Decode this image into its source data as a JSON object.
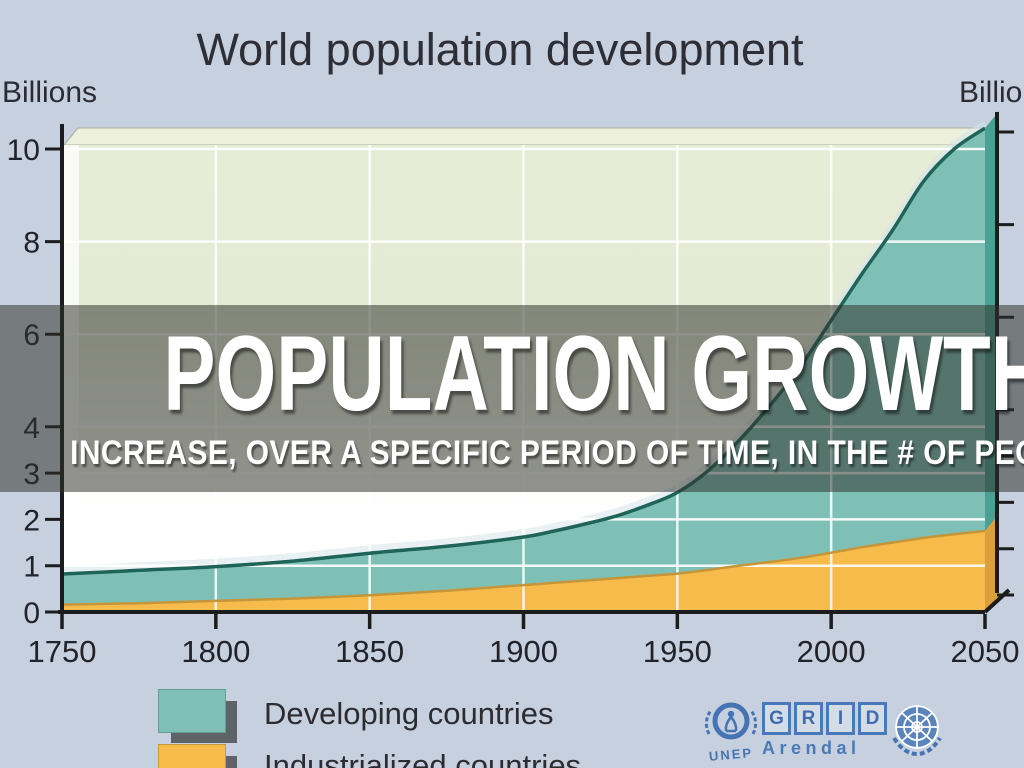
{
  "slide": {
    "title": "POPULATION GROWTH",
    "subtitle": "INCREASE, OVER A SPECIFIC PERIOD OF TIME, IN THE # OF PEOPLE",
    "overlay_bg": "rgba(47,49,42,0.53)"
  },
  "chart": {
    "title": "World population development",
    "y_axis_label_left": "Billions",
    "y_axis_label_right": "Billio",
    "legend": [
      {
        "label": "Developing countries"
      },
      {
        "label": "Industrialized countries"
      }
    ],
    "credits": {
      "unep_label": "UNEP",
      "grid_letters": [
        "G",
        "R",
        "I",
        "D"
      ],
      "grid_sub": "Arendal",
      "logo_color": "#4673b2"
    }
  },
  "chart_data": {
    "type": "area",
    "stacked": true,
    "title": "World population development",
    "ylabel": "Billions",
    "xlim": [
      1750,
      2050
    ],
    "ylim": [
      0,
      10.6
    ],
    "x": [
      1750,
      1775,
      1800,
      1825,
      1850,
      1875,
      1900,
      1910,
      1920,
      1930,
      1940,
      1950,
      1960,
      1970,
      1980,
      1990,
      2000,
      2010,
      2020,
      2030,
      2040,
      2050
    ],
    "series": [
      {
        "name": "Developing countries",
        "color": "#7fc0b6",
        "edge_color": "#1f6459",
        "side_color": "#49a093",
        "values": [
          0.66,
          0.71,
          0.74,
          0.81,
          0.91,
          0.96,
          1.04,
          1.12,
          1.22,
          1.34,
          1.52,
          1.75,
          2.14,
          2.7,
          3.37,
          4.13,
          5.02,
          5.9,
          6.75,
          7.7,
          8.32,
          8.7
        ]
      },
      {
        "name": "Industrialized countries",
        "color": "#f6bb4a",
        "edge_color": "#c5953a",
        "side_color": "#db9f3b",
        "values": [
          0.16,
          0.19,
          0.24,
          0.29,
          0.36,
          0.46,
          0.58,
          0.63,
          0.68,
          0.73,
          0.78,
          0.83,
          0.91,
          1.0,
          1.08,
          1.17,
          1.28,
          1.4,
          1.5,
          1.6,
          1.68,
          1.75
        ]
      }
    ],
    "x_ticks": [
      1750,
      1800,
      1850,
      1900,
      1950,
      2000,
      2050
    ],
    "y_ticks": [
      0,
      1,
      2,
      3,
      4,
      6,
      8,
      10
    ],
    "grid": true,
    "legend_position": "bottom-left",
    "plot_bg_top": "#e6ecd6",
    "plot_bg_bottom": "#ffffff",
    "axis_color": "#1c1c1c"
  }
}
